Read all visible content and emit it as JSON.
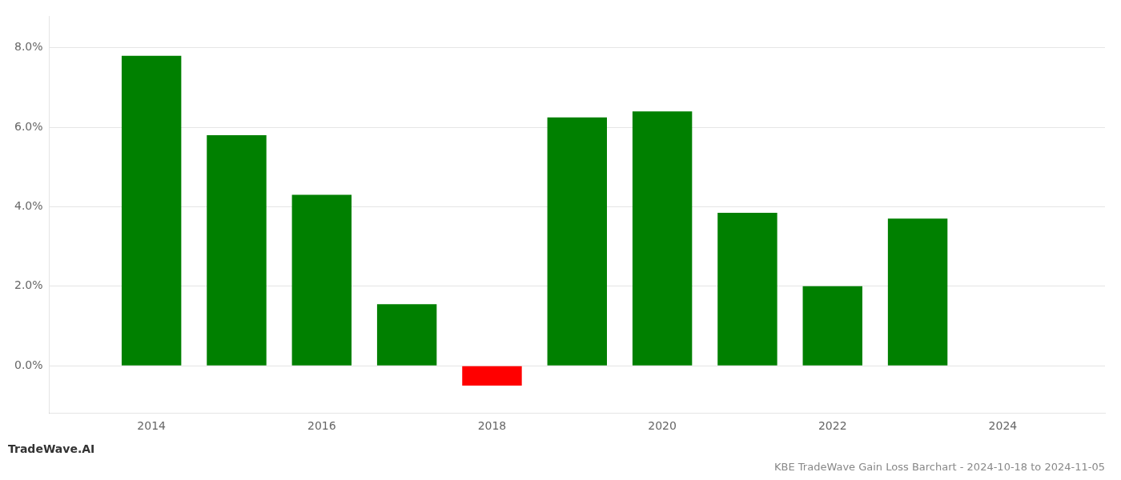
{
  "chart_data": {
    "type": "bar",
    "title": "KBE TradeWave Gain Loss Barchart - 2024-10-18 to 2024-11-05",
    "annotations": [
      "TradeWave.AI"
    ],
    "x": [
      2014,
      2015,
      2016,
      2017,
      2018,
      2019,
      2020,
      2021,
      2022,
      2023
    ],
    "values": [
      0.078,
      0.058,
      0.043,
      0.0155,
      -0.005,
      0.0625,
      0.064,
      0.0385,
      0.02,
      0.037
    ],
    "colors": [
      "#008000",
      "#008000",
      "#008000",
      "#008000",
      "#ff0000",
      "#008000",
      "#008000",
      "#008000",
      "#008000",
      "#008000"
    ],
    "xlim": [
      2012.8,
      2025.2
    ],
    "xticks": [
      2014,
      2016,
      2018,
      2020,
      2022,
      2024
    ],
    "ylim": [
      -0.012,
      0.088
    ],
    "yticks": [
      {
        "value": 0.0,
        "label": "0.0%"
      },
      {
        "value": 0.02,
        "label": "2.0%"
      },
      {
        "value": 0.04,
        "label": "4.0%"
      },
      {
        "value": 0.06,
        "label": "6.0%"
      },
      {
        "value": 0.08,
        "label": "8.0%"
      }
    ],
    "grid": "y"
  }
}
